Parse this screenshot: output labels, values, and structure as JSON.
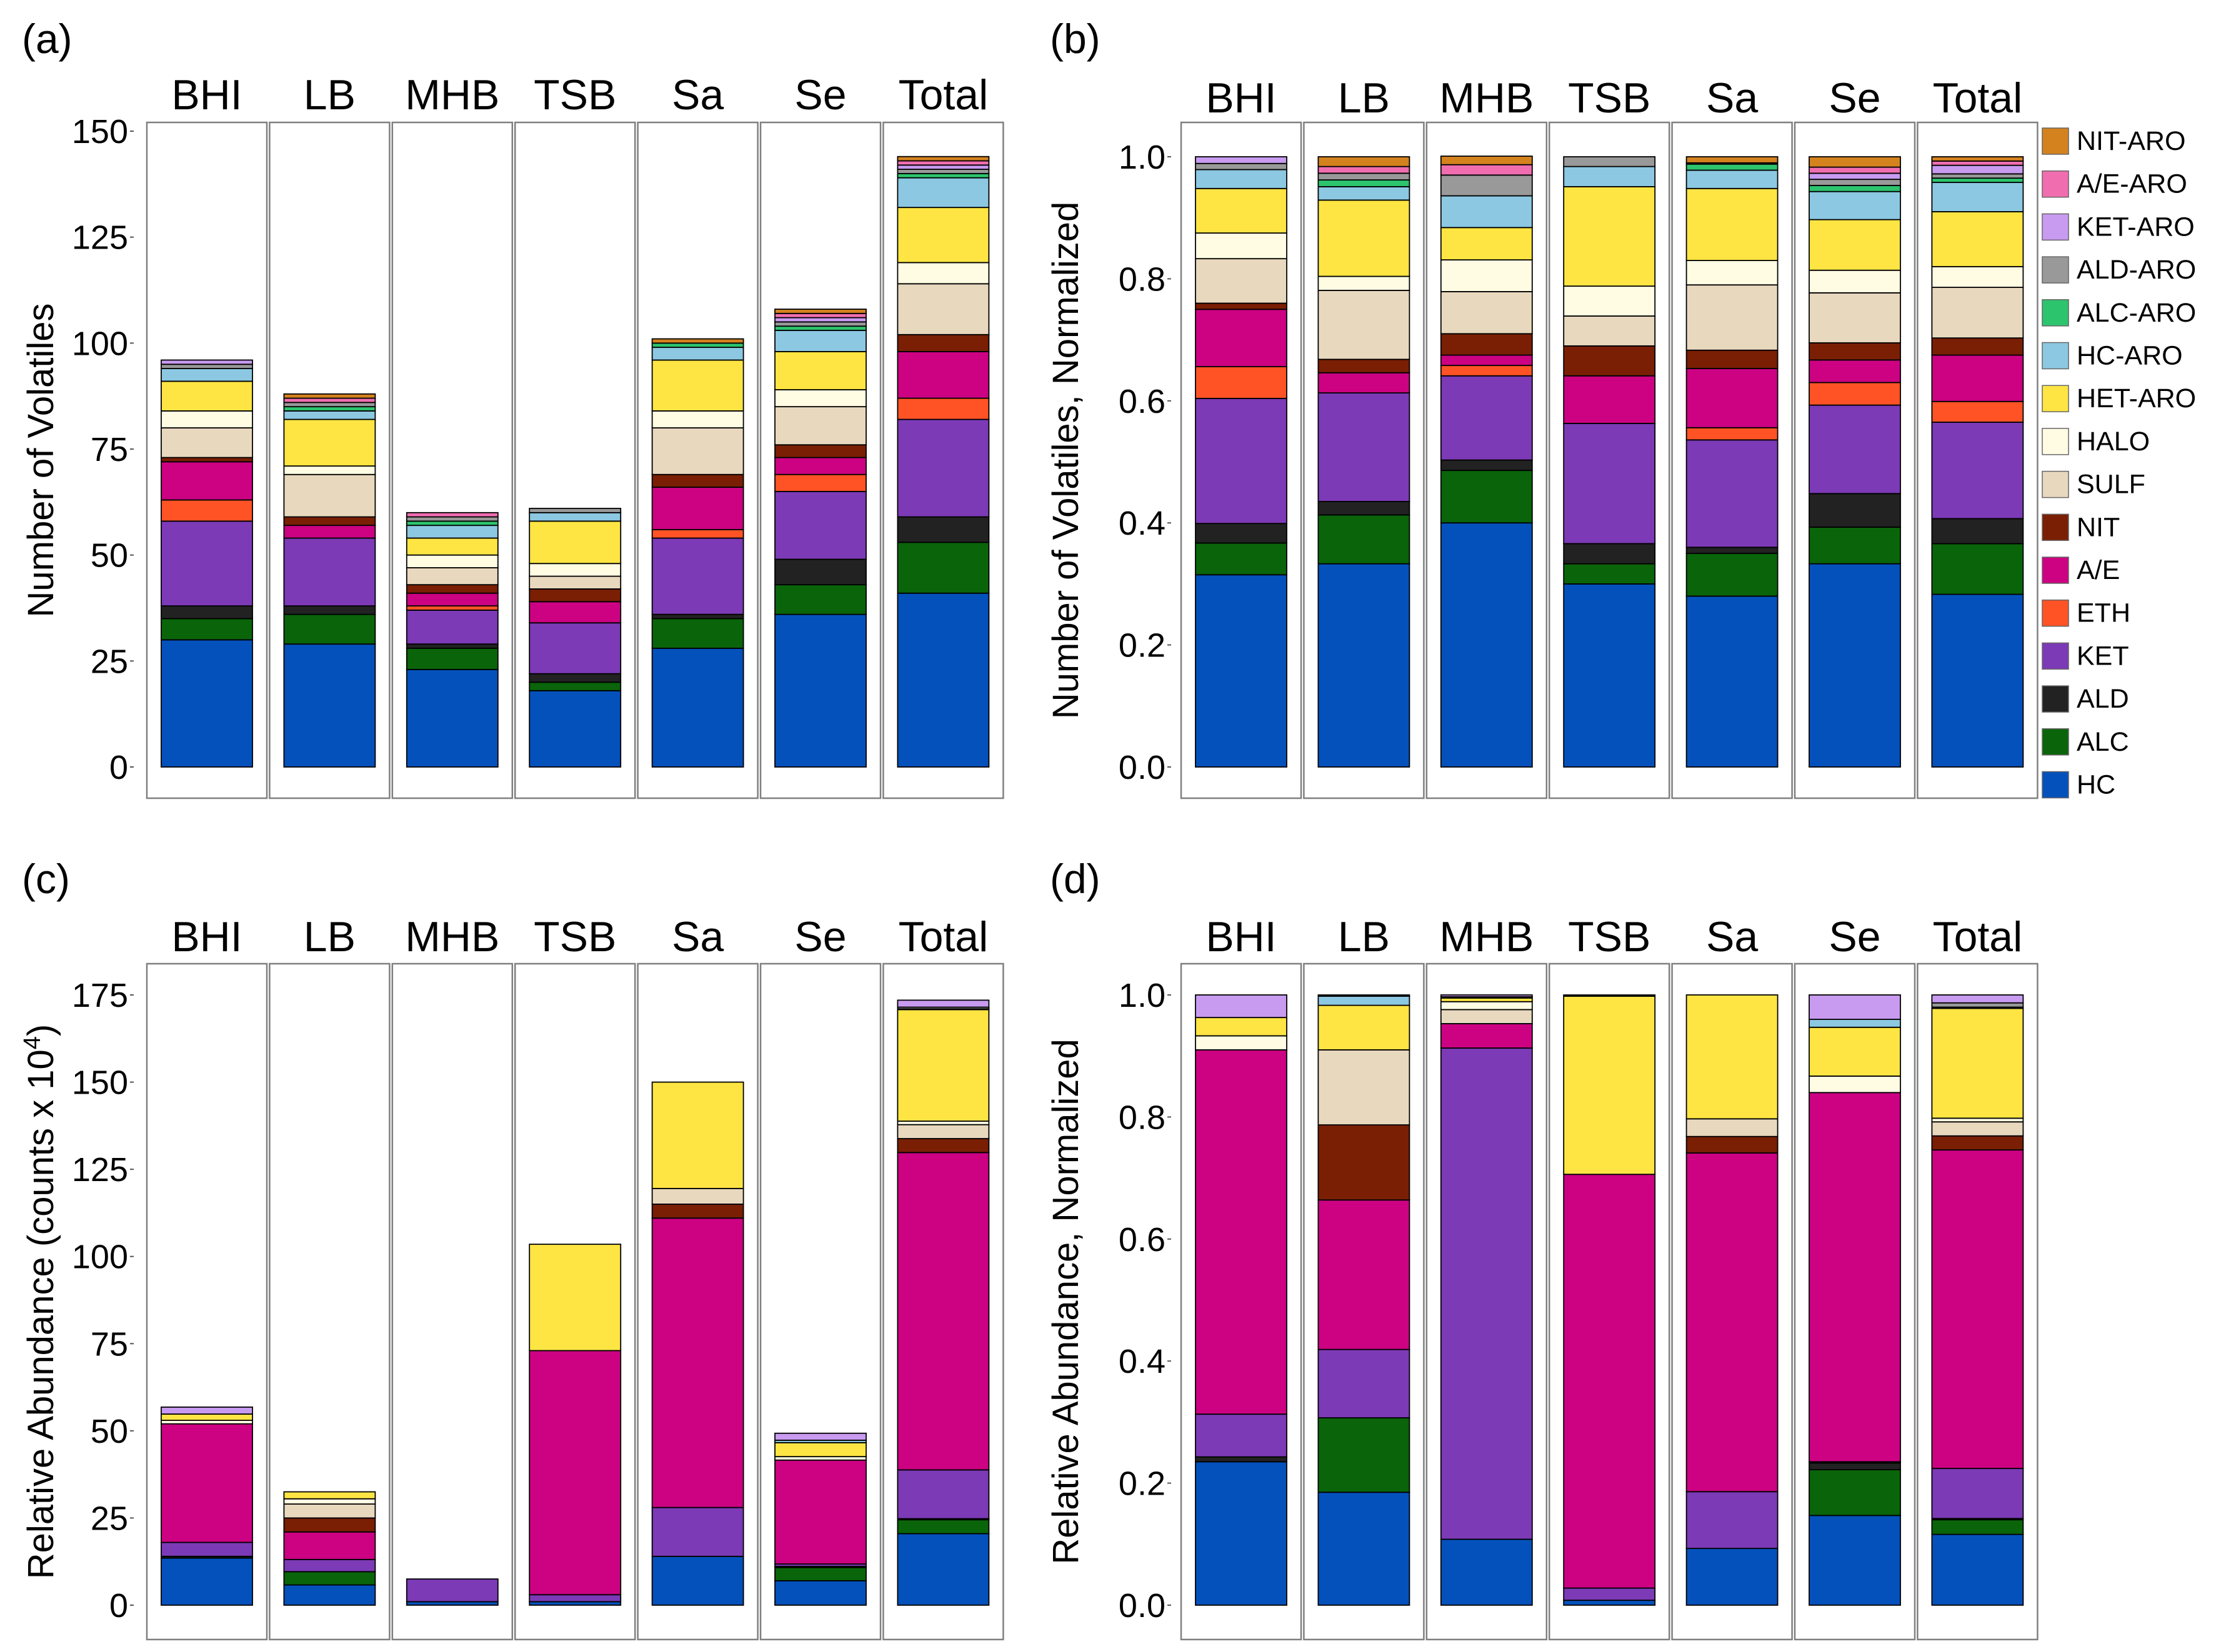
{
  "figure": {
    "categories": [
      {
        "key": "NIT-ARO",
        "color": "#D4821E"
      },
      {
        "key": "A/E-ARO",
        "color": "#F06EB0"
      },
      {
        "key": "KET-ARO",
        "color": "#C89BF0"
      },
      {
        "key": "ALD-ARO",
        "color": "#999999"
      },
      {
        "key": "ALC-ARO",
        "color": "#2DC46E"
      },
      {
        "key": "HC-ARO",
        "color": "#8CC8E2"
      },
      {
        "key": "HET-ARO",
        "color": "#FEE543"
      },
      {
        "key": "HALO",
        "color": "#FFFCE3"
      },
      {
        "key": "SULF",
        "color": "#E8D8BE"
      },
      {
        "key": "NIT",
        "color": "#7A1F04"
      },
      {
        "key": "A/E",
        "color": "#CC0282"
      },
      {
        "key": "ETH",
        "color": "#FF5326"
      },
      {
        "key": "KET",
        "color": "#7C3AB6"
      },
      {
        "key": "ALD",
        "color": "#222222"
      },
      {
        "key": "ALC",
        "color": "#0A640A"
      },
      {
        "key": "HC",
        "color": "#0451BB"
      }
    ]
  },
  "chart_data": [
    {
      "panel": "(a)",
      "type": "bar",
      "stacked": true,
      "categories": [
        "BHI",
        "LB",
        "MHB",
        "TSB",
        "Sa",
        "Se",
        "Total"
      ],
      "ylabel": "Number of Volatiles",
      "ylim": [
        0,
        150
      ],
      "yticks": [
        0,
        25,
        50,
        75,
        100,
        125,
        150
      ],
      "ytick_labels": [
        "0",
        "25",
        "50",
        "75",
        "100",
        "125",
        "150"
      ],
      "series": [
        {
          "name": "HC",
          "values": [
            30,
            29,
            23,
            18,
            28,
            36,
            41
          ]
        },
        {
          "name": "ALC",
          "values": [
            5,
            7,
            5,
            2,
            7,
            7,
            12
          ]
        },
        {
          "name": "ALD",
          "values": [
            3,
            2,
            1,
            2,
            1,
            6,
            6
          ]
        },
        {
          "name": "KET",
          "values": [
            20,
            16,
            8,
            12,
            18,
            16,
            23
          ]
        },
        {
          "name": "ETH",
          "values": [
            5,
            0,
            1,
            0,
            2,
            4,
            5
          ]
        },
        {
          "name": "A/E",
          "values": [
            9,
            3,
            3,
            5,
            10,
            4,
            11
          ]
        },
        {
          "name": "NIT",
          "values": [
            1,
            2,
            2,
            3,
            3,
            3,
            4
          ]
        },
        {
          "name": "SULF",
          "values": [
            7,
            10,
            4,
            3,
            11,
            9,
            12
          ]
        },
        {
          "name": "HALO",
          "values": [
            4,
            2,
            3,
            3,
            4,
            4,
            5
          ]
        },
        {
          "name": "HET-ARO",
          "values": [
            7,
            11,
            4,
            10,
            12,
            9,
            13
          ]
        },
        {
          "name": "HC-ARO",
          "values": [
            3,
            2,
            3,
            2,
            3,
            5,
            7
          ]
        },
        {
          "name": "ALC-ARO",
          "values": [
            0,
            1,
            1,
            0,
            1,
            1,
            1
          ]
        },
        {
          "name": "ALD-ARO",
          "values": [
            1,
            1,
            1,
            1,
            0,
            1,
            1
          ]
        },
        {
          "name": "KET-ARO",
          "values": [
            1,
            0,
            0,
            0,
            0,
            1,
            1
          ]
        },
        {
          "name": "A/E-ARO",
          "values": [
            0,
            1,
            1,
            0,
            0,
            1,
            1
          ]
        },
        {
          "name": "NIT-ARO",
          "values": [
            0,
            1,
            0,
            0,
            1,
            1,
            1
          ]
        }
      ]
    },
    {
      "panel": "(b)",
      "type": "bar",
      "stacked": true,
      "categories": [
        "BHI",
        "LB",
        "MHB",
        "TSB",
        "Sa",
        "Se",
        "Total"
      ],
      "ylabel": "Number of Volatiles, Normalized",
      "ylim": [
        0,
        1.0
      ],
      "yticks": [
        0,
        0.2,
        0.4,
        0.6,
        0.8,
        1.0
      ],
      "ytick_labels": [
        "0.0",
        "0.2",
        "0.4",
        "0.6",
        "0.8",
        "1.0"
      ],
      "series": [
        {
          "name": "HC",
          "values": [
            0.315,
            0.333,
            0.4,
            0.3,
            0.28,
            0.333,
            0.283
          ]
        },
        {
          "name": "ALC",
          "values": [
            0.052,
            0.08,
            0.086,
            0.033,
            0.07,
            0.06,
            0.083
          ]
        },
        {
          "name": "ALD",
          "values": [
            0.032,
            0.022,
            0.017,
            0.033,
            0.01,
            0.055,
            0.041
          ]
        },
        {
          "name": "KET",
          "values": [
            0.205,
            0.178,
            0.138,
            0.197,
            0.176,
            0.145,
            0.158
          ]
        },
        {
          "name": "ETH",
          "values": [
            0.052,
            0.0,
            0.017,
            0.0,
            0.02,
            0.037,
            0.034
          ]
        },
        {
          "name": "A/E",
          "values": [
            0.094,
            0.033,
            0.017,
            0.078,
            0.097,
            0.037,
            0.076
          ]
        },
        {
          "name": "NIT",
          "values": [
            0.01,
            0.022,
            0.035,
            0.049,
            0.03,
            0.028,
            0.028
          ]
        },
        {
          "name": "SULF",
          "values": [
            0.073,
            0.113,
            0.069,
            0.049,
            0.107,
            0.082,
            0.083
          ]
        },
        {
          "name": "HALO",
          "values": [
            0.042,
            0.023,
            0.052,
            0.049,
            0.04,
            0.037,
            0.034
          ]
        },
        {
          "name": "HET-ARO",
          "values": [
            0.073,
            0.125,
            0.053,
            0.163,
            0.118,
            0.083,
            0.09
          ]
        },
        {
          "name": "HC-ARO",
          "values": [
            0.031,
            0.022,
            0.052,
            0.033,
            0.03,
            0.046,
            0.048
          ]
        },
        {
          "name": "ALC-ARO",
          "values": [
            0.0,
            0.011,
            0.0,
            0.0,
            0.01,
            0.01,
            0.007
          ]
        },
        {
          "name": "ALD-ARO",
          "values": [
            0.01,
            0.011,
            0.034,
            0.016,
            0.0,
            0.01,
            0.007
          ]
        },
        {
          "name": "KET-ARO",
          "values": [
            0.011,
            0.0,
            0.0,
            0.0,
            0.0,
            0.01,
            0.014
          ]
        },
        {
          "name": "A/E-ARO",
          "values": [
            0.0,
            0.011,
            0.017,
            0.0,
            0.002,
            0.01,
            0.007
          ]
        },
        {
          "name": "NIT-ARO",
          "values": [
            0.0,
            0.016,
            0.014,
            0.0,
            0.01,
            0.017,
            0.007
          ]
        }
      ]
    },
    {
      "panel": "(c)",
      "type": "bar",
      "stacked": true,
      "categories": [
        "BHI",
        "LB",
        "MHB",
        "TSB",
        "Sa",
        "Se",
        "Total"
      ],
      "ylabel": "Relative Abundance (counts x 10",
      "ylabel_sup": "4",
      "ylabel_end": ")",
      "ylim": [
        0,
        175
      ],
      "yticks": [
        0,
        25,
        50,
        75,
        100,
        125,
        150,
        175
      ],
      "ytick_labels": [
        "0",
        "25",
        "50",
        "75",
        "100",
        "125",
        "150",
        "175"
      ],
      "series": [
        {
          "name": "HC",
          "values": [
            13.5,
            5.8,
            1.0,
            1.0,
            14.0,
            7.0,
            20.5
          ]
        },
        {
          "name": "ALC",
          "values": [
            0,
            3.8,
            0,
            0,
            0,
            3.8,
            4.0
          ]
        },
        {
          "name": "ALD",
          "values": [
            0.5,
            0,
            0,
            0,
            0,
            0.3,
            0.3
          ]
        },
        {
          "name": "KET",
          "values": [
            4.0,
            3.5,
            6.5,
            2.0,
            14.0,
            0.7,
            14.0
          ]
        },
        {
          "name": "ETH",
          "values": [
            0,
            0,
            0,
            0,
            0,
            0,
            0
          ]
        },
        {
          "name": "A/E",
          "values": [
            34.0,
            7.9,
            0,
            70.0,
            83.0,
            29.8,
            91.0
          ]
        },
        {
          "name": "NIT",
          "values": [
            0,
            4.0,
            0,
            0,
            4.0,
            0,
            4.0
          ]
        },
        {
          "name": "SULF",
          "values": [
            0,
            4.0,
            0,
            0,
            4.5,
            0,
            4.0
          ]
        },
        {
          "name": "HALO",
          "values": [
            1.0,
            1.5,
            0,
            0,
            0,
            1.0,
            1.0
          ]
        },
        {
          "name": "HET-ARO",
          "values": [
            1.8,
            2.0,
            0,
            30.5,
            30.5,
            4.0,
            32.0
          ]
        },
        {
          "name": "HC-ARO",
          "values": [
            0,
            0,
            0,
            0,
            0,
            0.7,
            0.2
          ]
        },
        {
          "name": "ALC-ARO",
          "values": [
            0,
            0,
            0,
            0,
            0,
            0,
            0
          ]
        },
        {
          "name": "ALD-ARO",
          "values": [
            0,
            0,
            0,
            0,
            0,
            0,
            0.5
          ]
        },
        {
          "name": "KET-ARO",
          "values": [
            2.0,
            0,
            0,
            0,
            0,
            2.0,
            2.0
          ]
        },
        {
          "name": "A/E-ARO",
          "values": [
            0,
            0,
            0,
            0,
            0,
            0,
            0
          ]
        },
        {
          "name": "NIT-ARO",
          "values": [
            0,
            0,
            0,
            0,
            0,
            0,
            0
          ]
        }
      ]
    },
    {
      "panel": "(d)",
      "type": "bar",
      "stacked": true,
      "categories": [
        "BHI",
        "LB",
        "MHB",
        "TSB",
        "Sa",
        "Se",
        "Total"
      ],
      "ylabel": "Relative Abundance, Normalized",
      "ylim": [
        0,
        1.0
      ],
      "yticks": [
        0,
        0.2,
        0.4,
        0.6,
        0.8,
        1.0
      ],
      "ytick_labels": [
        "0.0",
        "0.2",
        "0.4",
        "0.6",
        "0.8",
        "1.0"
      ],
      "series": [
        {
          "name": "HC",
          "values": [
            0.235,
            0.185,
            0.108,
            0.008,
            0.093,
            0.147,
            0.116
          ]
        },
        {
          "name": "ALC",
          "values": [
            0,
            0.122,
            0,
            0,
            0,
            0.075,
            0.024
          ]
        },
        {
          "name": "ALD",
          "values": [
            0.008,
            0,
            0,
            0,
            0,
            0.011,
            0.002
          ]
        },
        {
          "name": "KET",
          "values": [
            0.07,
            0.112,
            0.805,
            0.02,
            0.093,
            0.002,
            0.082
          ]
        },
        {
          "name": "ETH",
          "values": [
            0,
            0,
            0,
            0,
            0,
            0,
            0
          ]
        },
        {
          "name": "A/E",
          "values": [
            0.597,
            0.245,
            0.04,
            0.678,
            0.555,
            0.605,
            0.522
          ]
        },
        {
          "name": "NIT",
          "values": [
            0,
            0.123,
            0,
            0,
            0.027,
            0,
            0.023
          ]
        },
        {
          "name": "SULF",
          "values": [
            0,
            0.123,
            0.023,
            0,
            0.029,
            0,
            0.023
          ]
        },
        {
          "name": "HALO",
          "values": [
            0.023,
            0,
            0.013,
            0,
            0,
            0.027,
            0.006
          ]
        },
        {
          "name": "HET-ARO",
          "values": [
            0.03,
            0.073,
            0.006,
            0.292,
            0.203,
            0.08,
            0.18
          ]
        },
        {
          "name": "HC-ARO",
          "values": [
            0,
            0.015,
            0,
            0,
            0,
            0.013,
            0.002
          ]
        },
        {
          "name": "ALC-ARO",
          "values": [
            0,
            0,
            0,
            0,
            0,
            0,
            0
          ]
        },
        {
          "name": "ALD-ARO",
          "values": [
            0,
            0.002,
            0.002,
            0.002,
            0,
            0,
            0.007
          ]
        },
        {
          "name": "KET-ARO",
          "values": [
            0.037,
            0,
            0.003,
            0,
            0,
            0.04,
            0.013
          ]
        },
        {
          "name": "A/E-ARO",
          "values": [
            0,
            0,
            0,
            0,
            0,
            0,
            0
          ]
        },
        {
          "name": "NIT-ARO",
          "values": [
            0,
            0,
            0,
            0,
            0,
            0,
            0
          ]
        }
      ]
    }
  ]
}
